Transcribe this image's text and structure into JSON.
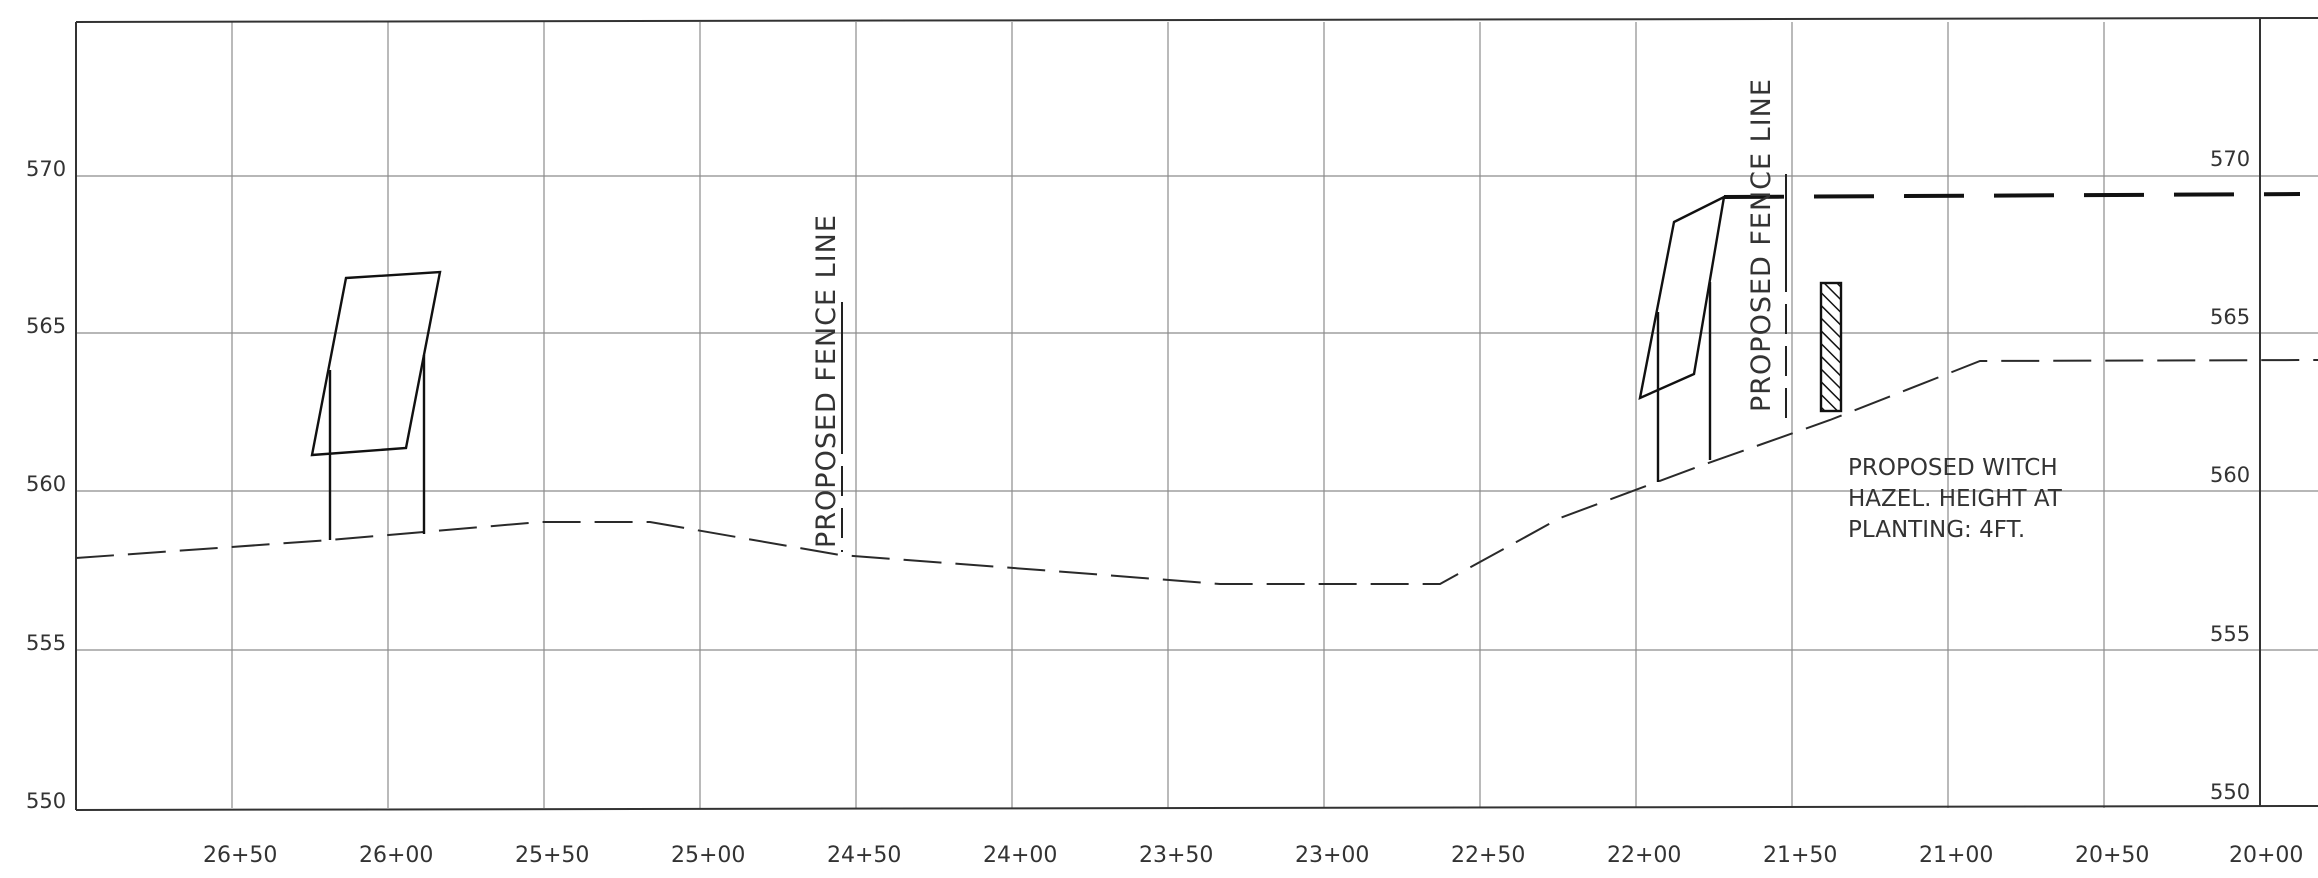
{
  "elevations_left": [
    "570",
    "565",
    "560",
    "555",
    "550"
  ],
  "elevations_right": [
    "570",
    "565",
    "560",
    "555",
    "550"
  ],
  "stations": [
    "26+50",
    "26+00",
    "25+50",
    "25+00",
    "24+50",
    "24+00",
    "23+50",
    "23+00",
    "22+50",
    "22+00",
    "21+50",
    "21+00",
    "20+50",
    "20+00"
  ],
  "fence_label_1": "PROPOSED FENCE LINE",
  "fence_label_2": "PROPOSED FENCE LINE",
  "note_lines": [
    "PROPOSED WITCH",
    "HAZEL. HEIGHT AT",
    "PLANTING: 4FT."
  ]
}
